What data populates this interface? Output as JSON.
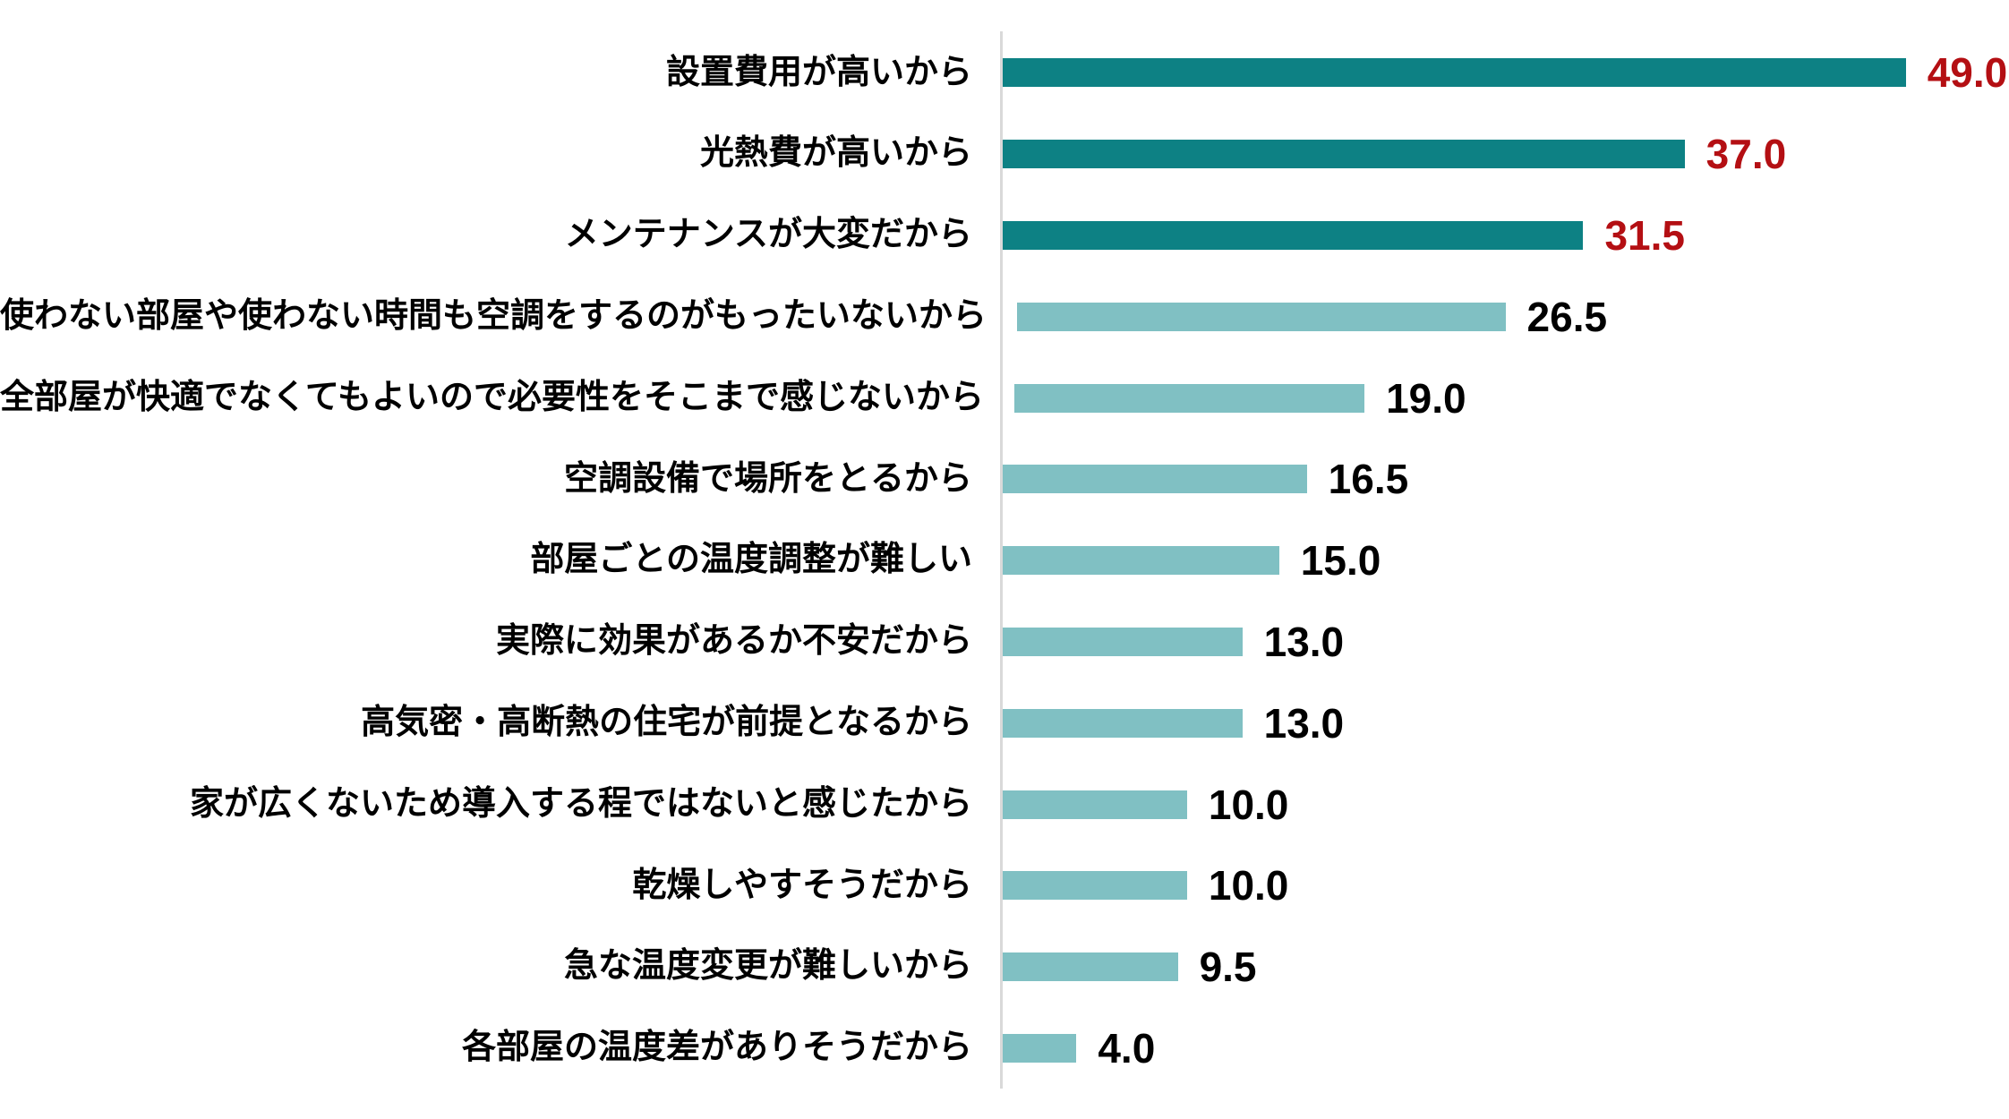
{
  "chart_data": {
    "type": "bar",
    "orientation": "horizontal",
    "title": "",
    "xlabel": "",
    "ylabel": "",
    "legend": "none",
    "grid": "off",
    "xlim": [
      0,
      54.6
    ],
    "categories": [
      "設置費用が高いから",
      "光熱費が高いから",
      "メンテナンスが大変だから",
      "使わない部屋や使わない時間も空調をするのがもったいないから",
      "全部屋が快適でなくてもよいので必要性をそこまで感じないから",
      "空調設備で場所をとるから",
      "部屋ごとの温度調整が難しい",
      "実際に効果があるか不安だから",
      "高気密・高断熱の住宅が前提となるから",
      "家が広くないため導入する程ではないと感じたから",
      "乾燥しやすそうだから",
      "急な温度変更が難しいから",
      "各部屋の温度差がありそうだから"
    ],
    "values": [
      49.0,
      37.0,
      31.5,
      26.5,
      19.0,
      16.5,
      15.0,
      13.0,
      13.0,
      10.0,
      10.0,
      9.5,
      4.0
    ],
    "value_labels": [
      "49.0",
      "37.0",
      "31.5",
      "26.5",
      "19.0",
      "16.5",
      "15.0",
      "13.0",
      "13.0",
      "10.0",
      "10.0",
      "9.5",
      "4.0"
    ],
    "emphasized_first_n": 3,
    "colors": {
      "bar_emphasized": "#0D8184",
      "bar_normal": "#80C0C3",
      "value_label_emphasized": "#B40F13",
      "value_label_normal": "#000000",
      "axis_line": "#D9D9D9",
      "category_label": "#000000"
    }
  }
}
